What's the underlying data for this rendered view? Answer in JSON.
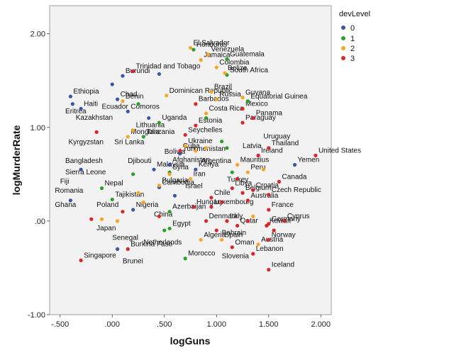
{
  "chart_data": {
    "type": "scatter",
    "xlabel": "logGuns",
    "ylabel": "logMurderRate",
    "xlim": [
      -0.6,
      2.1
    ],
    "ylim": [
      -1.0,
      2.3
    ],
    "x_ticks": [
      -0.5,
      0.0,
      0.5,
      1.0,
      1.5,
      2.0
    ],
    "x_tick_labels": [
      "-.500",
      ".000",
      ".500",
      "1.000",
      "1.500",
      "2.000"
    ],
    "y_ticks": [
      -1.0,
      0.0,
      1.0,
      2.0
    ],
    "y_tick_labels": [
      "-1.00",
      ".00",
      "1.00",
      "2.00"
    ],
    "grid": false,
    "legend": {
      "title": "devLevel",
      "placement": "right",
      "entries": [
        {
          "label": "0",
          "color": "#3a56a5"
        },
        {
          "label": "1",
          "color": "#2ca02c"
        },
        {
          "label": "2",
          "color": "#f5a623"
        },
        {
          "label": "3",
          "color": "#d9262a"
        }
      ]
    },
    "series": [
      {
        "name": "0",
        "color": "#3a56a5",
        "points": [
          {
            "x": -0.4,
            "y": 1.33,
            "label": "Ethiopia"
          },
          {
            "x": 0.05,
            "y": 1.3,
            "label": "Chad"
          },
          {
            "x": 0.1,
            "y": 1.55,
            "label": "Burundi"
          },
          {
            "x": 0.0,
            "y": 1.46,
            "label": ""
          },
          {
            "x": -0.3,
            "y": 1.2,
            "label": "Haiti"
          },
          {
            "x": -0.38,
            "y": 1.25,
            "label": ""
          },
          {
            "x": 0.45,
            "y": 1.57,
            "label": ""
          },
          {
            "x": 0.15,
            "y": 1.17,
            "label": "Comoros"
          },
          {
            "x": 0.35,
            "y": 1.1,
            "label": ""
          },
          {
            "x": 0.4,
            "y": 0.55,
            "label": "Malaysia"
          },
          {
            "x": 0.45,
            "y": 0.36,
            "label": "Cambodia"
          },
          {
            "x": 0.55,
            "y": 0.6,
            "label": "Afghanistan"
          },
          {
            "x": 0.65,
            "y": 0.72,
            "label": "Turkmenistan"
          },
          {
            "x": -0.4,
            "y": 0.22,
            "label": ""
          },
          {
            "x": 0.2,
            "y": 0.12,
            "label": "Nigeria"
          },
          {
            "x": 0.05,
            "y": -0.3,
            "label": ""
          },
          {
            "x": 0.6,
            "y": 0.27,
            "label": ""
          },
          {
            "x": 0.8,
            "y": 0.55,
            "label": "Kenya"
          },
          {
            "x": 1.75,
            "y": 0.6,
            "label": "Yemen"
          },
          {
            "x": -0.3,
            "y": 0.55,
            "label": ""
          }
        ]
      },
      {
        "name": "1",
        "color": "#2ca02c",
        "points": [
          {
            "x": 0.78,
            "y": 1.83,
            "label": "Honduras"
          },
          {
            "x": 1.1,
            "y": 1.73,
            "label": "Guatemala"
          },
          {
            "x": 1.1,
            "y": 1.56,
            "label": "South Africa"
          },
          {
            "x": 1.3,
            "y": 1.28,
            "label": "Equatorial Guinea"
          },
          {
            "x": 0.45,
            "y": 1.05,
            "label": "Uganda"
          },
          {
            "x": 0.3,
            "y": 0.9,
            "label": "Tanzania"
          },
          {
            "x": 0.9,
            "y": 1.1,
            "label": ""
          },
          {
            "x": 1.05,
            "y": 0.85,
            "label": ""
          },
          {
            "x": 0.2,
            "y": 0.5,
            "label": ""
          },
          {
            "x": 0.55,
            "y": 0.52,
            "label": "Syria"
          },
          {
            "x": -0.1,
            "y": 0.35,
            "label": "Nepal"
          },
          {
            "x": 0.0,
            "y": 0.23,
            "label": "Tajikistan"
          },
          {
            "x": 0.55,
            "y": 0.1,
            "label": "Azerbaijan"
          },
          {
            "x": 0.55,
            "y": -0.08,
            "label": "Egypt"
          },
          {
            "x": 0.5,
            "y": -0.1,
            "label": ""
          },
          {
            "x": 0.7,
            "y": -0.4,
            "label": "Morocco"
          },
          {
            "x": 1.1,
            "y": 0.78,
            "label": ""
          },
          {
            "x": 1.15,
            "y": 0.52,
            "label": ""
          },
          {
            "x": 0.25,
            "y": 1.25,
            "label": ""
          }
        ]
      },
      {
        "name": "2",
        "color": "#f5a623",
        "points": [
          {
            "x": 0.75,
            "y": 1.85,
            "label": "El Salvador"
          },
          {
            "x": 0.92,
            "y": 1.78,
            "label": "Venezuela"
          },
          {
            "x": 0.85,
            "y": 1.72,
            "label": "Jamaica"
          },
          {
            "x": 1.0,
            "y": 1.64,
            "label": "Colombia"
          },
          {
            "x": 1.08,
            "y": 1.58,
            "label": "Belize"
          },
          {
            "x": 0.95,
            "y": 1.38,
            "label": "Brazil"
          },
          {
            "x": 1.25,
            "y": 1.32,
            "label": "Guyana"
          },
          {
            "x": 1.0,
            "y": 1.3,
            "label": "Russia"
          },
          {
            "x": 0.52,
            "y": 1.34,
            "label": "Dominican Republic"
          },
          {
            "x": 0.1,
            "y": 1.28,
            "label": "Benin"
          },
          {
            "x": 0.15,
            "y": 0.9,
            "label": "Mongolia"
          },
          {
            "x": 0.7,
            "y": 0.8,
            "label": "Ukraine"
          },
          {
            "x": 0.8,
            "y": 0.75,
            "label": ""
          },
          {
            "x": 0.9,
            "y": 0.78,
            "label": ""
          },
          {
            "x": 1.2,
            "y": 0.6,
            "label": "Mauritius"
          },
          {
            "x": 1.3,
            "y": 0.52,
            "label": "Peru"
          },
          {
            "x": 1.45,
            "y": 0.55,
            "label": ""
          },
          {
            "x": 0.75,
            "y": 0.45,
            "label": "Iran"
          },
          {
            "x": 0.45,
            "y": 0.38,
            "label": "Bulgaria"
          },
          {
            "x": -0.1,
            "y": 0.02,
            "label": ""
          },
          {
            "x": 0.05,
            "y": 0.0,
            "label": ""
          },
          {
            "x": 0.25,
            "y": 0.3,
            "label": ""
          },
          {
            "x": 0.85,
            "y": -0.2,
            "label": "Algeria"
          },
          {
            "x": 1.05,
            "y": -0.2,
            "label": "Spain"
          },
          {
            "x": 1.4,
            "y": -0.25,
            "label": "Austria"
          },
          {
            "x": 1.35,
            "y": 0.05,
            "label": ""
          },
          {
            "x": 0.55,
            "y": 0.5,
            "label": ""
          },
          {
            "x": 0.3,
            "y": 0.2,
            "label": ""
          },
          {
            "x": 0.2,
            "y": 0.97,
            "label": "Lithuania"
          },
          {
            "x": 0.9,
            "y": 1.15,
            "label": "Costa Rica"
          }
        ]
      },
      {
        "name": "3",
        "color": "#d9262a",
        "points": [
          {
            "x": 0.2,
            "y": 1.6,
            "label": "Trinidad and Tobago"
          },
          {
            "x": 0.8,
            "y": 1.25,
            "label": "Barbados"
          },
          {
            "x": 1.25,
            "y": 1.2,
            "label": "Mexico"
          },
          {
            "x": 1.35,
            "y": 1.1,
            "label": "Panama"
          },
          {
            "x": 1.25,
            "y": 1.05,
            "label": "Paraguay"
          },
          {
            "x": -0.15,
            "y": 0.95,
            "label": ""
          },
          {
            "x": 0.8,
            "y": 1.02,
            "label": "Estonia"
          },
          {
            "x": 0.7,
            "y": 0.92,
            "label": "Seychelles"
          },
          {
            "x": 0.65,
            "y": 0.75,
            "label": "Cuba"
          },
          {
            "x": 1.4,
            "y": 0.7,
            "label": "Ireland"
          },
          {
            "x": 1.5,
            "y": 0.78,
            "label": "Thailand"
          },
          {
            "x": 1.95,
            "y": 0.7,
            "label": "United States"
          },
          {
            "x": 1.6,
            "y": 0.42,
            "label": "Canada"
          },
          {
            "x": 1.5,
            "y": 0.28,
            "label": "Czech Republic"
          },
          {
            "x": 1.35,
            "y": 0.33,
            "label": "Croatia"
          },
          {
            "x": 1.15,
            "y": 0.35,
            "label": "Libya"
          },
          {
            "x": 1.25,
            "y": 0.3,
            "label": "Belgium"
          },
          {
            "x": 1.3,
            "y": 0.22,
            "label": "Australia"
          },
          {
            "x": 0.95,
            "y": 0.15,
            "label": "Luxembourg"
          },
          {
            "x": 1.1,
            "y": 0.0,
            "label": "Italy"
          },
          {
            "x": 1.2,
            "y": -0.05,
            "label": "Qatar"
          },
          {
            "x": 1.5,
            "y": 0.12,
            "label": "France"
          },
          {
            "x": 1.65,
            "y": 0.0,
            "label": "Cyprus"
          },
          {
            "x": 1.5,
            "y": -0.03,
            "label": "Germany"
          },
          {
            "x": 1.48,
            "y": -0.05,
            "label": "Kuwait"
          },
          {
            "x": 1.5,
            "y": -0.2,
            "label": "Norway"
          },
          {
            "x": 1.5,
            "y": -0.52,
            "label": "Iceland"
          },
          {
            "x": 1.35,
            "y": -0.35,
            "label": "Lebanon"
          },
          {
            "x": 1.15,
            "y": -0.28,
            "label": "Oman"
          },
          {
            "x": 0.9,
            "y": 0.0,
            "label": "Denmark"
          },
          {
            "x": -0.3,
            "y": -0.42,
            "label": "Singapore"
          },
          {
            "x": 0.15,
            "y": -0.3,
            "label": "Burkina Faso"
          },
          {
            "x": -0.2,
            "y": 0.02,
            "label": ""
          },
          {
            "x": 0.1,
            "y": 0.1,
            "label": ""
          },
          {
            "x": 0.45,
            "y": 0.05,
            "label": ""
          },
          {
            "x": 1.05,
            "y": 0.2,
            "label": ""
          },
          {
            "x": 1.2,
            "y": 0.45,
            "label": ""
          },
          {
            "x": 1.3,
            "y": 0.0,
            "label": ""
          },
          {
            "x": 1.55,
            "y": -0.1,
            "label": ""
          },
          {
            "x": 1.0,
            "y": -0.1,
            "label": ""
          },
          {
            "x": 0.95,
            "y": 0.25,
            "label": "Chile"
          },
          {
            "x": 0.78,
            "y": 0.15,
            "label": "Hungary"
          }
        ]
      }
    ],
    "extra_labels": [
      {
        "x": -0.45,
        "y": 1.15,
        "text": "Eritrea"
      },
      {
        "x": -0.35,
        "y": 1.08,
        "text": "Kazakhstan"
      },
      {
        "x": -0.1,
        "y": 1.2,
        "text": "Ecuador"
      },
      {
        "x": -0.42,
        "y": 0.82,
        "text": "Kyrgyzstan"
      },
      {
        "x": 0.02,
        "y": 0.82,
        "text": "Sri Lanka"
      },
      {
        "x": 0.15,
        "y": 0.62,
        "text": "Djibouti"
      },
      {
        "x": -0.45,
        "y": 0.62,
        "text": "Bangladesh"
      },
      {
        "x": -0.45,
        "y": 0.5,
        "text": "Sierra Leone"
      },
      {
        "x": -0.5,
        "y": 0.4,
        "text": "Fiji"
      },
      {
        "x": -0.55,
        "y": 0.3,
        "text": "Romania"
      },
      {
        "x": -0.55,
        "y": 0.15,
        "text": "Ghana"
      },
      {
        "x": -0.15,
        "y": 0.15,
        "text": "Poland"
      },
      {
        "x": -0.15,
        "y": -0.1,
        "text": "Japan"
      },
      {
        "x": 0.0,
        "y": -0.2,
        "text": "Senegal"
      },
      {
        "x": 0.1,
        "y": -0.45,
        "text": "Brunei"
      },
      {
        "x": 0.3,
        "y": -0.25,
        "text": "Netherlands"
      },
      {
        "x": 0.4,
        "y": 0.05,
        "text": "China"
      },
      {
        "x": 0.7,
        "y": 0.35,
        "text": "Israel"
      },
      {
        "x": 0.85,
        "y": 0.62,
        "text": "Argentina"
      },
      {
        "x": 1.1,
        "y": 0.42,
        "text": "Turkey"
      },
      {
        "x": 1.25,
        "y": 0.78,
        "text": "Latvia"
      },
      {
        "x": 1.45,
        "y": 0.88,
        "text": "Uruguay"
      },
      {
        "x": 1.05,
        "y": -0.4,
        "text": "Slovenia"
      },
      {
        "x": 1.05,
        "y": -0.15,
        "text": "Bahrain"
      },
      {
        "x": 0.5,
        "y": 0.72,
        "text": "Bolivia"
      }
    ]
  }
}
